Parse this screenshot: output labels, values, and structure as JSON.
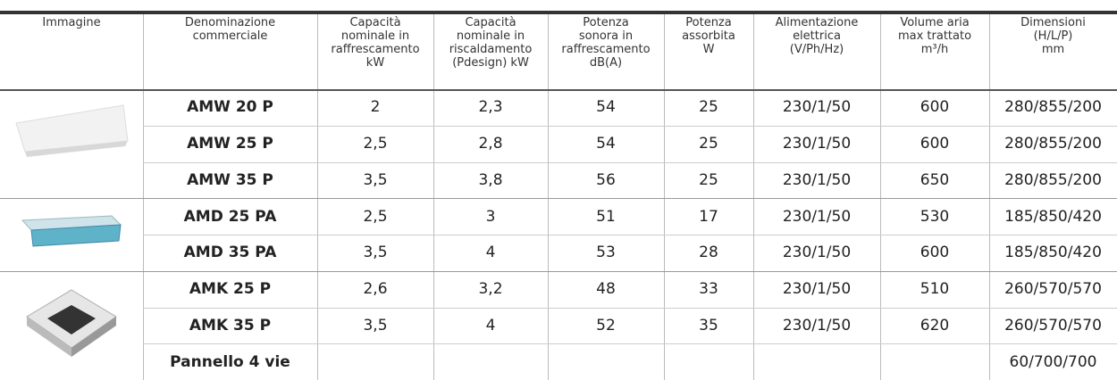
{
  "header": [
    "Immagine",
    "Denominazione\ncommerciale",
    "Capacità\nnominale in\nraffrescamento\nkW",
    "Capacità\nnominale in\nriscaldamento\n(Pdesign) kW",
    "Potenza\nsonora in\nraffrescamento\ndB(A)",
    "Potenza\nassorbita\nW",
    "Alimentazione\nelettrica\n(V/Ph/Hz)",
    "Volume aria\nmax trattato\nm³/h",
    "Dimensioni\n(H/L/P)\nmm"
  ],
  "rows": [
    {
      "name": "AMW 20 P",
      "cells": [
        "2",
        "2,3",
        "54",
        "25",
        "230/1/50",
        "600"
      ],
      "dimensions": "280/855/200"
    },
    {
      "name": "AMW 25 P",
      "cells": [
        "2,5",
        "2,8",
        "54",
        "25",
        "230/1/50",
        "600"
      ],
      "dimensions": "280/855/200"
    },
    {
      "name": "AMW 35 P",
      "cells": [
        "3,5",
        "3,8",
        "56",
        "25",
        "230/1/50",
        "650"
      ],
      "dimensions": "280/855/200"
    },
    {
      "name": "AMD 25 PA",
      "cells": [
        "2,5",
        "3",
        "51",
        "17",
        "230/1/50",
        "530"
      ],
      "dimensions": "185/850/420"
    },
    {
      "name": "AMD 35 PA",
      "cells": [
        "3,5",
        "4",
        "53",
        "28",
        "230/1/50",
        "600"
      ],
      "dimensions": "185/850/420"
    },
    {
      "name": "AMK 25 P",
      "cells": [
        "2,6",
        "3,2",
        "48",
        "33",
        "230/1/50",
        "510"
      ],
      "dimensions": "260/570/570"
    },
    {
      "name": "AMK 35 P",
      "cells": [
        "3,5",
        "4",
        "52",
        "35",
        "230/1/50",
        "620"
      ],
      "dimensions": "260/570/570"
    },
    {
      "name": "Pannello 4 vie",
      "dimensions": "60/700/700"
    }
  ]
}
